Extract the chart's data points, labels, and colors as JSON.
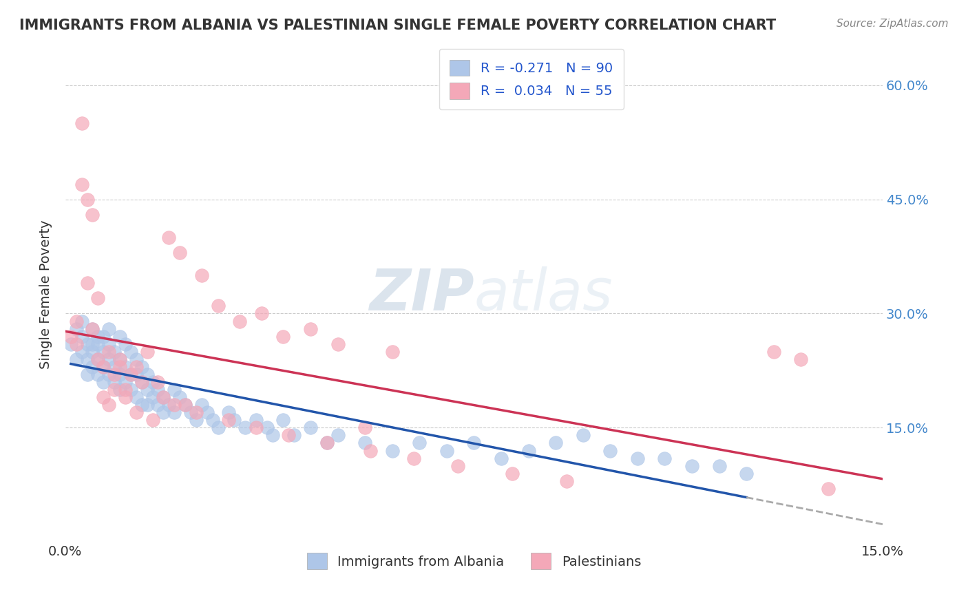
{
  "title": "IMMIGRANTS FROM ALBANIA VS PALESTINIAN SINGLE FEMALE POVERTY CORRELATION CHART",
  "source": "Source: ZipAtlas.com",
  "ylabel": "Single Female Poverty",
  "ytick_values": [
    0.15,
    0.3,
    0.45,
    0.6
  ],
  "xlim": [
    0.0,
    0.15
  ],
  "ylim": [
    0.0,
    0.65
  ],
  "legend_labels": [
    "Immigrants from Albania",
    "Palestinians"
  ],
  "albania_color": "#aec6e8",
  "albania_line_color": "#2255aa",
  "palest_color": "#f4a8b8",
  "palest_line_color": "#cc3355",
  "dashed_line_color": "#aaaaaa",
  "watermark_zip": "ZIP",
  "watermark_atlas": "atlas",
  "background_color": "#ffffff",
  "grid_color": "#cccccc",
  "albania_x": [
    0.001,
    0.002,
    0.002,
    0.003,
    0.003,
    0.003,
    0.004,
    0.004,
    0.004,
    0.005,
    0.005,
    0.005,
    0.005,
    0.006,
    0.006,
    0.006,
    0.006,
    0.007,
    0.007,
    0.007,
    0.007,
    0.008,
    0.008,
    0.008,
    0.008,
    0.009,
    0.009,
    0.009,
    0.01,
    0.01,
    0.01,
    0.01,
    0.011,
    0.011,
    0.011,
    0.012,
    0.012,
    0.012,
    0.013,
    0.013,
    0.013,
    0.014,
    0.014,
    0.014,
    0.015,
    0.015,
    0.015,
    0.016,
    0.016,
    0.017,
    0.017,
    0.018,
    0.018,
    0.019,
    0.02,
    0.02,
    0.021,
    0.022,
    0.023,
    0.024,
    0.025,
    0.026,
    0.027,
    0.028,
    0.03,
    0.031,
    0.033,
    0.035,
    0.037,
    0.038,
    0.04,
    0.042,
    0.045,
    0.048,
    0.05,
    0.055,
    0.06,
    0.065,
    0.07,
    0.08,
    0.09,
    0.1,
    0.11,
    0.12,
    0.095,
    0.105,
    0.085,
    0.075,
    0.115,
    0.125
  ],
  "albania_y": [
    0.26,
    0.28,
    0.24,
    0.27,
    0.25,
    0.29,
    0.26,
    0.24,
    0.22,
    0.28,
    0.26,
    0.23,
    0.25,
    0.27,
    0.24,
    0.22,
    0.26,
    0.25,
    0.23,
    0.27,
    0.21,
    0.26,
    0.24,
    0.22,
    0.28,
    0.25,
    0.23,
    0.21,
    0.27,
    0.24,
    0.22,
    0.2,
    0.26,
    0.23,
    0.21,
    0.25,
    0.22,
    0.2,
    0.24,
    0.22,
    0.19,
    0.23,
    0.21,
    0.18,
    0.22,
    0.2,
    0.18,
    0.21,
    0.19,
    0.2,
    0.18,
    0.19,
    0.17,
    0.18,
    0.2,
    0.17,
    0.19,
    0.18,
    0.17,
    0.16,
    0.18,
    0.17,
    0.16,
    0.15,
    0.17,
    0.16,
    0.15,
    0.16,
    0.15,
    0.14,
    0.16,
    0.14,
    0.15,
    0.13,
    0.14,
    0.13,
    0.12,
    0.13,
    0.12,
    0.11,
    0.13,
    0.12,
    0.11,
    0.1,
    0.14,
    0.11,
    0.12,
    0.13,
    0.1,
    0.09
  ],
  "palest_x": [
    0.001,
    0.002,
    0.003,
    0.004,
    0.005,
    0.006,
    0.007,
    0.008,
    0.009,
    0.01,
    0.011,
    0.012,
    0.013,
    0.015,
    0.017,
    0.019,
    0.021,
    0.025,
    0.028,
    0.032,
    0.036,
    0.04,
    0.045,
    0.05,
    0.055,
    0.003,
    0.005,
    0.007,
    0.009,
    0.011,
    0.004,
    0.006,
    0.008,
    0.01,
    0.013,
    0.016,
    0.02,
    0.024,
    0.03,
    0.035,
    0.041,
    0.048,
    0.056,
    0.064,
    0.072,
    0.082,
    0.092,
    0.13,
    0.14,
    0.002,
    0.014,
    0.018,
    0.022,
    0.06,
    0.135
  ],
  "palest_y": [
    0.27,
    0.26,
    0.55,
    0.45,
    0.28,
    0.24,
    0.23,
    0.25,
    0.22,
    0.24,
    0.2,
    0.22,
    0.23,
    0.25,
    0.21,
    0.4,
    0.38,
    0.35,
    0.31,
    0.29,
    0.3,
    0.27,
    0.28,
    0.26,
    0.15,
    0.47,
    0.43,
    0.19,
    0.2,
    0.19,
    0.34,
    0.32,
    0.18,
    0.23,
    0.17,
    0.16,
    0.18,
    0.17,
    0.16,
    0.15,
    0.14,
    0.13,
    0.12,
    0.11,
    0.1,
    0.09,
    0.08,
    0.25,
    0.07,
    0.29,
    0.21,
    0.19,
    0.18,
    0.25,
    0.24
  ]
}
